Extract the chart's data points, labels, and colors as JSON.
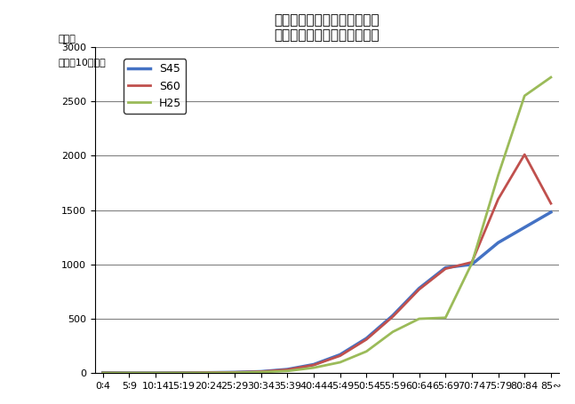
{
  "title_line1": "年齢階級別死亡率の年次比較",
  "title_line2": "（悪性新生物　男　熊本県）",
  "ylabel_line1": "死亡率",
  "ylabel_line2": "（人口10万対）",
  "xlabel_categories": [
    "0∶4",
    "5∶9",
    "10∶14",
    "15∶19",
    "20∶24",
    "25∶29",
    "30∶34",
    "35∶39",
    "40∶44",
    "45∶49",
    "50∶54",
    "55∶59",
    "60∶64",
    "65∶69",
    "70∶74",
    "75∶79",
    "80∶84",
    "85∾"
  ],
  "ylim": [
    0,
    3000
  ],
  "yticks": [
    0,
    500,
    1000,
    1500,
    2000,
    2500,
    3000
  ],
  "series": [
    {
      "label": "S45",
      "color": "#4472C4",
      "linewidth": 2.5,
      "values": [
        5,
        3,
        3,
        4,
        5,
        8,
        15,
        35,
        80,
        170,
        320,
        530,
        780,
        970,
        1000,
        1200,
        1340,
        1480
      ]
    },
    {
      "label": "S60",
      "color": "#C0504D",
      "linewidth": 2.0,
      "values": [
        3,
        2,
        2,
        3,
        5,
        8,
        14,
        32,
        75,
        160,
        310,
        520,
        770,
        960,
        1020,
        1600,
        2010,
        1560
      ]
    },
    {
      "label": "H25",
      "color": "#9BBB59",
      "linewidth": 2.0,
      "values": [
        2,
        2,
        2,
        2,
        3,
        5,
        10,
        20,
        50,
        100,
        200,
        380,
        500,
        510,
        1010,
        1820,
        2550,
        2720
      ]
    }
  ],
  "background_color": "#FFFFFF",
  "grid_color": "#808080",
  "title_fontsize": 11,
  "tick_fontsize": 8,
  "legend_fontsize": 9
}
